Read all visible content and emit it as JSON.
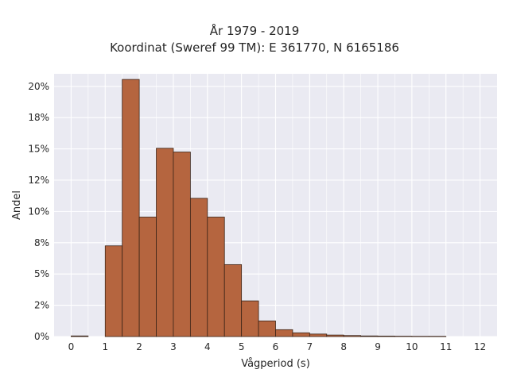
{
  "chart_data": {
    "type": "bar",
    "title": [
      "År 1979 - 2019",
      "Koordinat (Sweref 99 TM): E 361770, N 6165186"
    ],
    "xlabel": "Vågperiod (s)",
    "ylabel": "Andel",
    "xlim": [
      -0.5,
      12.5
    ],
    "ylim": [
      0,
      0.21
    ],
    "x_ticks": [
      0,
      1,
      2,
      3,
      4,
      5,
      6,
      7,
      8,
      9,
      10,
      11,
      12
    ],
    "x_tick_labels": [
      "0",
      "1",
      "2",
      "3",
      "4",
      "5",
      "6",
      "7",
      "8",
      "9",
      "10",
      "11",
      "12"
    ],
    "y_ticks": [
      0,
      0.025,
      0.05,
      0.075,
      0.1,
      0.125,
      0.15,
      0.175,
      0.2
    ],
    "y_tick_labels": [
      "0%",
      "2%",
      "5%",
      "8%",
      "10%",
      "12%",
      "15%",
      "18%",
      "20%"
    ],
    "bin_width": 0.5,
    "bins": [
      {
        "x0": 0.0,
        "value": 0.0005
      },
      {
        "x0": 1.0,
        "value": 0.0725
      },
      {
        "x0": 1.5,
        "value": 0.2055
      },
      {
        "x0": 2.0,
        "value": 0.0955
      },
      {
        "x0": 2.5,
        "value": 0.1505
      },
      {
        "x0": 3.0,
        "value": 0.1475
      },
      {
        "x0": 3.5,
        "value": 0.1105
      },
      {
        "x0": 4.0,
        "value": 0.0955
      },
      {
        "x0": 4.5,
        "value": 0.0575
      },
      {
        "x0": 5.0,
        "value": 0.0285
      },
      {
        "x0": 5.5,
        "value": 0.0125
      },
      {
        "x0": 6.0,
        "value": 0.0055
      },
      {
        "x0": 6.5,
        "value": 0.003
      },
      {
        "x0": 7.0,
        "value": 0.002
      },
      {
        "x0": 7.5,
        "value": 0.0012
      },
      {
        "x0": 8.0,
        "value": 0.0008
      },
      {
        "x0": 8.5,
        "value": 0.0005
      },
      {
        "x0": 9.0,
        "value": 0.0004
      },
      {
        "x0": 9.5,
        "value": 0.0003
      },
      {
        "x0": 10.0,
        "value": 0.0002
      },
      {
        "x0": 10.5,
        "value": 0.0002
      }
    ],
    "grid": true,
    "colors": {
      "plot_background": "#eaeaf2",
      "grid": "#ffffff",
      "bar_fill": "#b5653f",
      "bar_edge": "#3b2418"
    }
  }
}
